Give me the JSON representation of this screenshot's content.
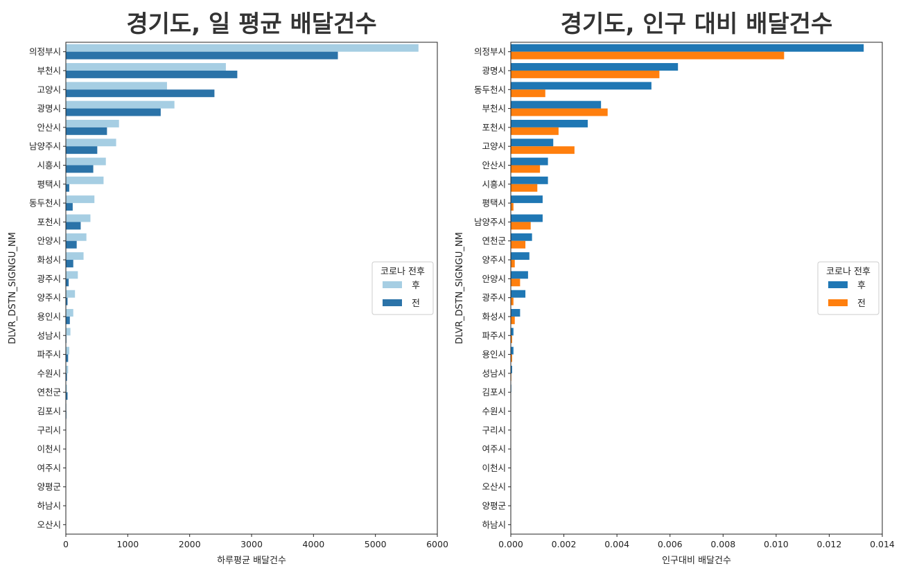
{
  "chart_data": [
    {
      "type": "bar",
      "orientation": "horizontal",
      "title": "경기도, 일 평균 배달건수",
      "xlabel": "하루평균 배달건수",
      "ylabel": "DLVR_DSTN_SIGNGU_NM",
      "xlim": [
        0,
        6500
      ],
      "xticks": [
        "0",
        "1000",
        "2000",
        "3000",
        "4000",
        "5000",
        "6000"
      ],
      "categories": [
        "의정부시",
        "부천시",
        "고양시",
        "광명시",
        "안산시",
        "남양주시",
        "시흥시",
        "평택시",
        "동두천시",
        "포천시",
        "안양시",
        "화성시",
        "광주시",
        "양주시",
        "용인시",
        "성남시",
        "파주시",
        "수원시",
        "연천군",
        "김포시",
        "구리시",
        "이천시",
        "여주시",
        "양평군",
        "하남시",
        "오산시"
      ],
      "series": [
        {
          "name": "후",
          "color": "#a6cee3",
          "values": [
            6170,
            2800,
            1770,
            1900,
            930,
            880,
            700,
            660,
            500,
            430,
            360,
            310,
            210,
            160,
            130,
            80,
            60,
            40,
            20,
            10,
            5,
            3,
            2,
            1,
            1,
            0
          ]
        },
        {
          "name": "전",
          "color": "#2b73a8",
          "values": [
            4760,
            3000,
            2600,
            1660,
            720,
            550,
            480,
            60,
            120,
            260,
            190,
            130,
            50,
            30,
            70,
            10,
            40,
            20,
            30,
            10,
            5,
            3,
            2,
            1,
            1,
            0
          ]
        }
      ],
      "legend": {
        "title": "코로나 전후",
        "placement": "right"
      },
      "grid": false
    },
    {
      "type": "bar",
      "orientation": "horizontal",
      "title": "경기도, 인구 대비 배달건수",
      "xlabel": "인구대비 배달건수",
      "ylabel": "DLVR_DSTN_SIGNGU_NM",
      "xlim": [
        0,
        0.014
      ],
      "xticks": [
        "0.000",
        "0.002",
        "0.004",
        "0.006",
        "0.008",
        "0.010",
        "0.012",
        "0.014"
      ],
      "categories": [
        "의정부시",
        "광명시",
        "동두천시",
        "부천시",
        "포천시",
        "고양시",
        "안산시",
        "시흥시",
        "평택시",
        "남양주시",
        "연천군",
        "양주시",
        "안양시",
        "광주시",
        "화성시",
        "파주시",
        "용인시",
        "성남시",
        "김포시",
        "수원시",
        "구리시",
        "여주시",
        "이천시",
        "오산시",
        "양평군",
        "하남시"
      ],
      "series": [
        {
          "name": "후",
          "color": "#1f77b4",
          "values": [
            0.0133,
            0.0063,
            0.0053,
            0.0034,
            0.0029,
            0.0016,
            0.0014,
            0.0014,
            0.0012,
            0.0012,
            0.0008,
            0.0007,
            0.00065,
            0.00055,
            0.00035,
            0.0001,
            0.0001,
            5e-05,
            2e-05,
            1e-05,
            1e-05,
            1e-05,
            1e-05,
            0,
            0,
            0
          ]
        },
        {
          "name": "전",
          "color": "#ff7f0e",
          "values": [
            0.0103,
            0.0056,
            0.0013,
            0.00365,
            0.0018,
            0.0024,
            0.0011,
            0.001,
            0.0001,
            0.00075,
            0.00055,
            0.00015,
            0.00035,
            0.0001,
            0.00015,
            5e-05,
            5e-05,
            2e-05,
            1e-05,
            1e-05,
            1e-05,
            1e-05,
            1e-05,
            0,
            0,
            0
          ]
        }
      ],
      "legend": {
        "title": "코로나 전후",
        "placement": "right"
      },
      "grid": false
    }
  ]
}
